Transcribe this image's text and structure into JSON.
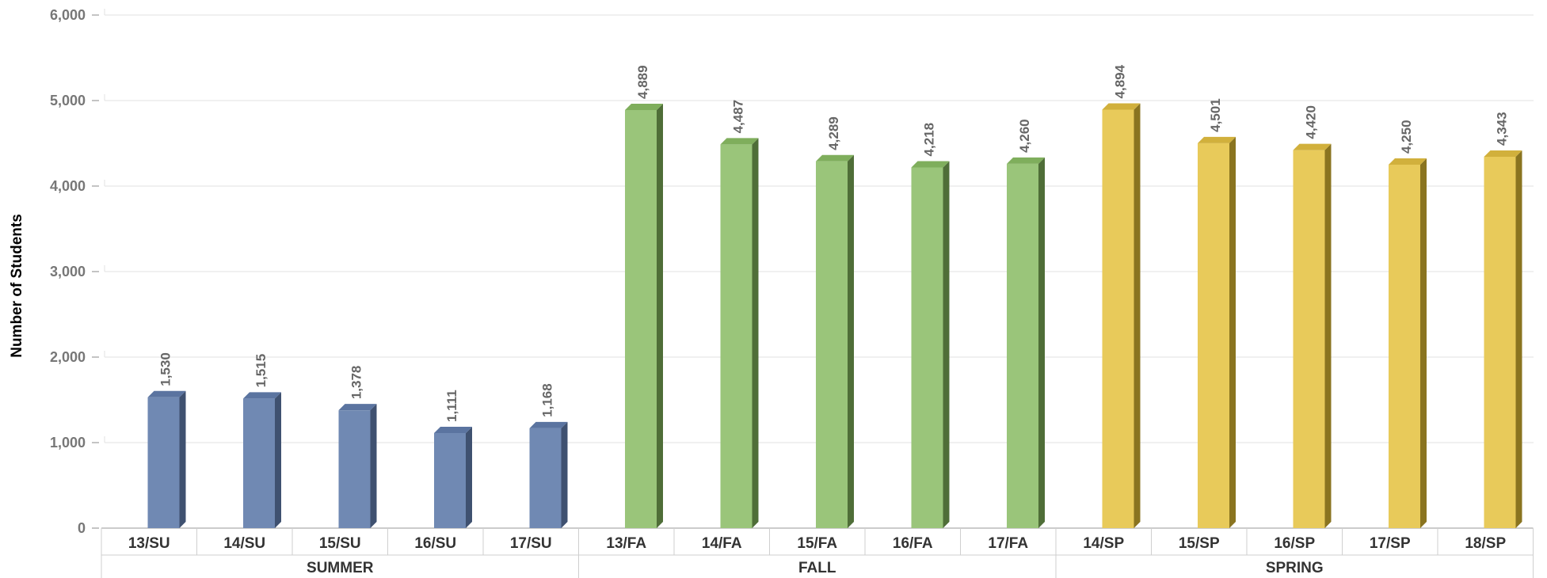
{
  "chart_data": {
    "type": "bar",
    "ylabel": "Number of Students",
    "xlabel": "",
    "ylim": [
      0,
      6000
    ],
    "yticks": [
      "0",
      "1,000",
      "2,000",
      "3,000",
      "4,000",
      "5,000",
      "6,000"
    ],
    "grid": true,
    "groups": [
      {
        "name": "SUMMER",
        "color": "#7089b3",
        "side_color": "#3f5170",
        "top_color": "#5b74a0",
        "categories": [
          "13/SU",
          "14/SU",
          "15/SU",
          "16/SU",
          "17/SU"
        ],
        "values": [
          1530,
          1515,
          1378,
          1111,
          1168
        ],
        "labels": [
          "1,530",
          "1,515",
          "1,378",
          "1,111",
          "1,168"
        ]
      },
      {
        "name": "FALL",
        "color": "#9ac57a",
        "side_color": "#4f6e38",
        "top_color": "#7fae5c",
        "categories": [
          "13/FA",
          "14/FA",
          "15/FA",
          "16/FA",
          "17/FA"
        ],
        "values": [
          4889,
          4487,
          4289,
          4218,
          4260
        ],
        "labels": [
          "4,889",
          "4,487",
          "4,289",
          "4,218",
          "4,260"
        ]
      },
      {
        "name": "SPRING",
        "color": "#e8ca5a",
        "side_color": "#8a7420",
        "top_color": "#d1b03c",
        "categories": [
          "14/SP",
          "15/SP",
          "16/SP",
          "17/SP",
          "18/SP"
        ],
        "values": [
          4894,
          4501,
          4420,
          4250,
          4343
        ],
        "labels": [
          "4,894",
          "4,501",
          "4,420",
          "4,250",
          "4,343"
        ]
      }
    ]
  }
}
